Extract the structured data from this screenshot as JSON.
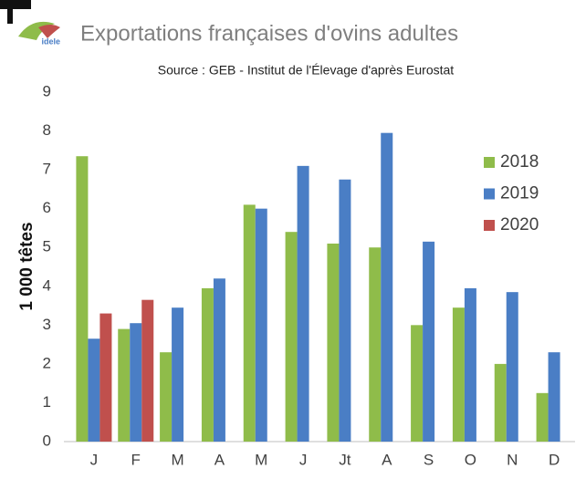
{
  "logo": "idele",
  "chart_data": {
    "type": "bar",
    "title": "Exportations françaises d'ovins adultes",
    "subtitle": "Source : GEB - Institut de l'Élevage d'après Eurostat",
    "y_label": "1 000 têtes",
    "categories": [
      "J",
      "F",
      "M",
      "A",
      "M",
      "J",
      "Jt",
      "A",
      "S",
      "O",
      "N",
      "D"
    ],
    "series": [
      {
        "name": "2018",
        "color": "#8fbc4a",
        "values": [
          7.35,
          2.9,
          2.3,
          3.95,
          6.1,
          5.4,
          5.1,
          5.0,
          3.0,
          3.45,
          2.0,
          1.25
        ]
      },
      {
        "name": "2019",
        "color": "#4a7ec5",
        "values": [
          2.65,
          3.05,
          3.45,
          4.2,
          6.0,
          7.1,
          6.75,
          7.95,
          5.15,
          3.95,
          3.85,
          2.3
        ]
      },
      {
        "name": "2020",
        "color": "#c0504d",
        "values": [
          3.3,
          3.65,
          null,
          null,
          null,
          null,
          null,
          null,
          null,
          null,
          null,
          null
        ]
      }
    ],
    "ylim": [
      0,
      9
    ],
    "yticks": [
      0,
      1,
      2,
      3,
      4,
      5,
      6,
      7,
      8,
      9
    ],
    "grid": false,
    "legend": "right"
  }
}
